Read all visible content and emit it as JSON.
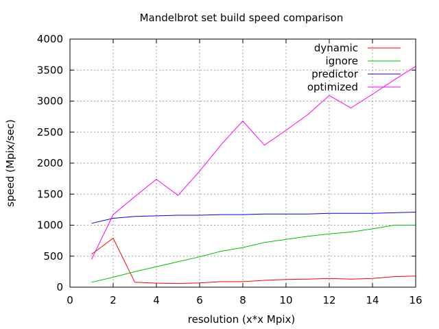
{
  "chart_data": {
    "type": "line",
    "title": "Mandelbrot set build speed comparison",
    "xlabel": "resolution (x*x Mpix)",
    "ylabel": "speed (Mpix/sec)",
    "xlim": [
      0,
      16
    ],
    "ylim": [
      0,
      4000
    ],
    "xticks": [
      0,
      2,
      4,
      6,
      8,
      10,
      12,
      14,
      16
    ],
    "yticks": [
      0,
      500,
      1000,
      1500,
      2000,
      2500,
      3000,
      3500,
      4000
    ],
    "grid": true,
    "legend_position": "top-right",
    "x": [
      1,
      2,
      3,
      4,
      5,
      6,
      7,
      8,
      9,
      10,
      11,
      12,
      13,
      14,
      15,
      16
    ],
    "series": [
      {
        "name": "dynamic",
        "color": "#ff0000",
        "values": [
          530,
          790,
          80,
          65,
          60,
          70,
          90,
          90,
          110,
          125,
          130,
          140,
          130,
          140,
          170,
          180
        ]
      },
      {
        "name": "ignore",
        "color": "#00c000",
        "values": [
          80,
          160,
          250,
          330,
          410,
          490,
          580,
          640,
          720,
          770,
          820,
          860,
          890,
          940,
          1000,
          1000
        ]
      },
      {
        "name": "predictor",
        "color": "#0000ff",
        "values": [
          1030,
          1110,
          1140,
          1150,
          1160,
          1160,
          1170,
          1170,
          1180,
          1180,
          1180,
          1190,
          1190,
          1190,
          1200,
          1210
        ]
      },
      {
        "name": "optimized",
        "color": "#ff00ff",
        "values": [
          450,
          1170,
          1460,
          1740,
          1480,
          1870,
          2300,
          2680,
          2290,
          2530,
          2780,
          3090,
          2890,
          3110,
          3340,
          3560
        ]
      }
    ]
  }
}
